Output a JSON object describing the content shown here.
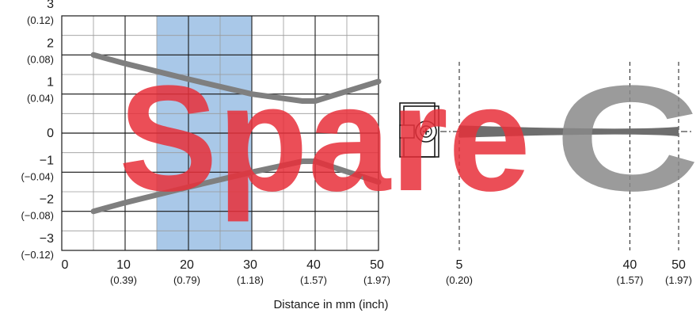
{
  "chart_data": [
    {
      "type": "line",
      "title": "",
      "xlabel": "Distance in mm (inch)",
      "ylabel": "",
      "xlim": [
        0,
        50
      ],
      "ylim": [
        -3,
        3
      ],
      "grid": true,
      "x_ticks": [
        {
          "value": 0,
          "mm": "0",
          "inch": ""
        },
        {
          "value": 10,
          "mm": "10",
          "inch": "(0.39)"
        },
        {
          "value": 20,
          "mm": "20",
          "inch": "(0.79)"
        },
        {
          "value": 30,
          "mm": "30",
          "inch": "(1.18)"
        },
        {
          "value": 40,
          "mm": "40",
          "inch": "(1.57)"
        },
        {
          "value": 50,
          "mm": "50",
          "inch": "(1.97)"
        }
      ],
      "y_ticks": [
        {
          "value": 3,
          "mm": "3",
          "inch": "(0.12)"
        },
        {
          "value": 2,
          "mm": "2",
          "inch": "(0.08)"
        },
        {
          "value": 1,
          "mm": "1",
          "inch": "(0.04)"
        },
        {
          "value": 0,
          "mm": "0",
          "inch": ""
        },
        {
          "value": -1,
          "mm": "−1",
          "inch": "(−0.04)"
        },
        {
          "value": -2,
          "mm": "−2",
          "inch": "(−0.08)"
        },
        {
          "value": -3,
          "mm": "−3",
          "inch": "(−0.12)"
        }
      ],
      "highlight_band": {
        "x_from": 15,
        "x_to": 30,
        "color": "#a9c8e8"
      },
      "series": [
        {
          "values": [
            [
              5,
              2.0
            ],
            [
              10,
              1.78
            ],
            [
              20,
              1.38
            ],
            [
              30,
              1.0
            ],
            [
              38,
              0.82
            ],
            [
              40,
              0.82
            ],
            [
              50,
              1.32
            ]
          ],
          "color": "#7f7f7f"
        },
        {
          "values": [
            [
              5,
              -2.0
            ],
            [
              10,
              -1.78
            ],
            [
              20,
              -1.38
            ],
            [
              30,
              -1.0
            ],
            [
              38,
              -0.72
            ],
            [
              40,
              -0.72
            ],
            [
              50,
              -1.25
            ]
          ],
          "color": "#7f7f7f"
        }
      ]
    },
    {
      "type": "area",
      "title": "",
      "x_ticks": [
        {
          "value": 5,
          "mm": "5",
          "inch": "(0.20)"
        },
        {
          "value": 40,
          "mm": "40",
          "inch": "(1.57)"
        },
        {
          "value": 50,
          "mm": "50",
          "inch": "(1.97)"
        }
      ],
      "beam_upper": [
        [
          5,
          0.26
        ],
        [
          40,
          0.02
        ],
        [
          50,
          0.2
        ]
      ],
      "beam_lower": [
        [
          5,
          -0.26
        ],
        [
          40,
          -0.02
        ],
        [
          50,
          -0.2
        ]
      ],
      "beam_color": "#6e6e6e",
      "optical_axis": "dash-dot"
    }
  ],
  "watermark": {
    "text": "SpareC",
    "red": "#e8303a",
    "gray": "#8a8a8a"
  },
  "sensor_icon": {
    "icon": "sensor-head-icon"
  }
}
